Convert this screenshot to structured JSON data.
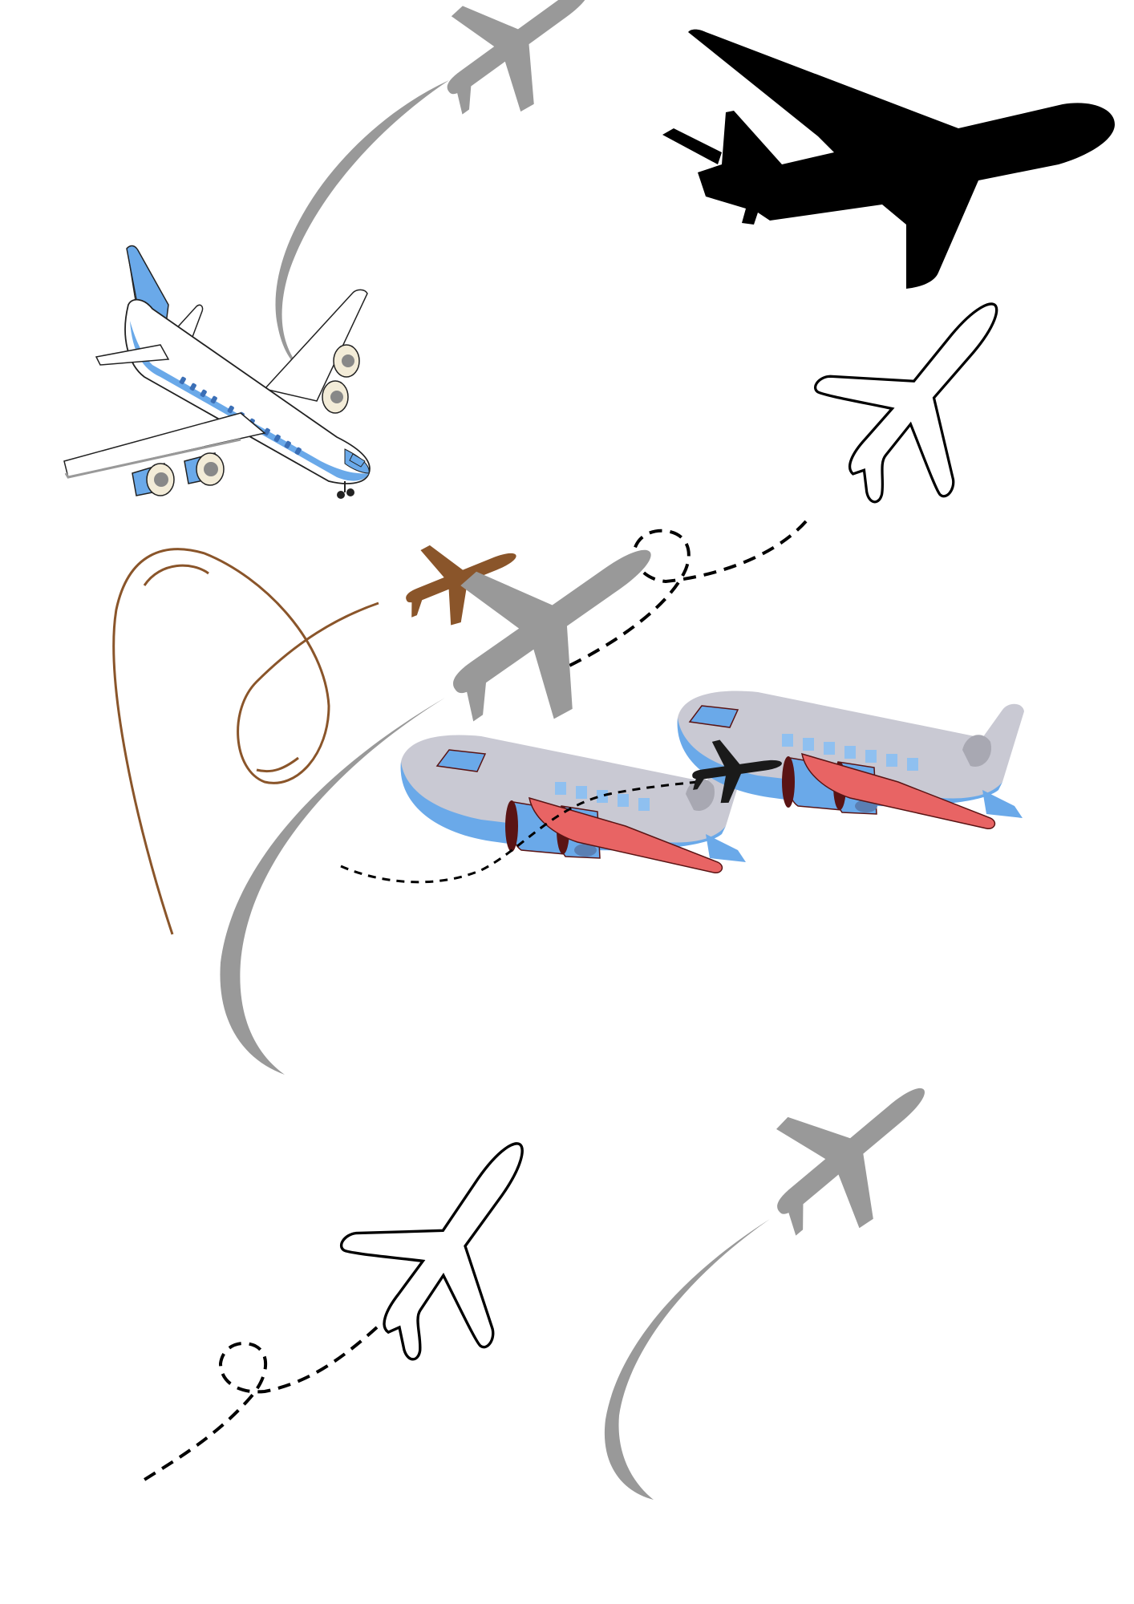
{
  "scene": {
    "background": "#ffffff",
    "colors": {
      "gray_trail": "#999999",
      "gray_plane": "#999999",
      "black": "#000000",
      "brown": "#8a552a",
      "blue": "#6aa9e9",
      "light_blue": "#8fc0f0",
      "body_gray": "#c9c9d3",
      "red": "#e86464",
      "dark_red": "#5a1414"
    },
    "items": [
      "gray-plane-silhouette",
      "black-plane-silhouette",
      "blue-white-jet-illustration",
      "outline-plane",
      "brown-plane",
      "cartoon-plane",
      "black-small-plane",
      "dashed-flight-path",
      "loop-trail"
    ]
  }
}
